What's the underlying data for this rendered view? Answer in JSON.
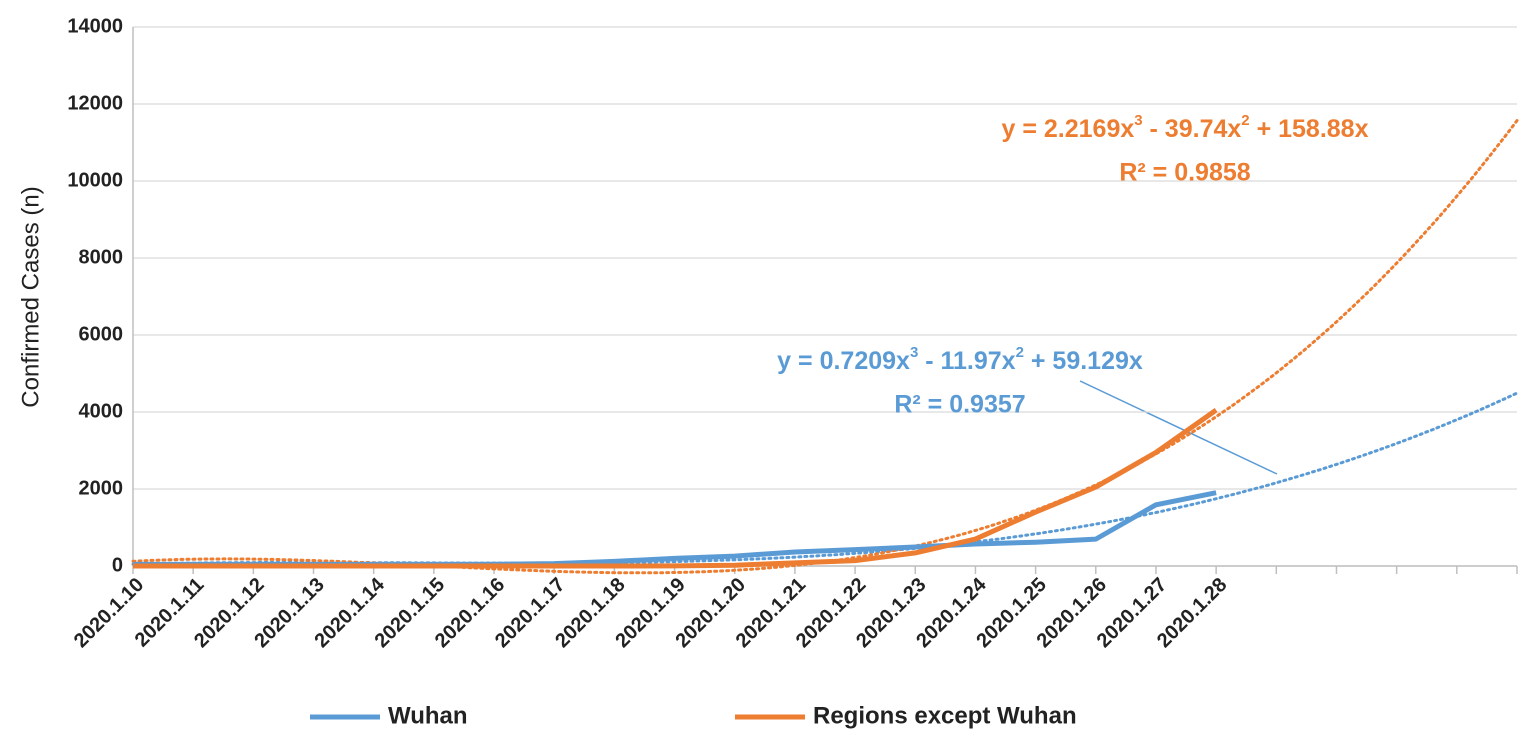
{
  "chart_data": {
    "type": "line",
    "y_label": "Confirmed Cases (n)",
    "categories": [
      "2020.1.10",
      "2020.1.11",
      "2020.1.12",
      "2020.1.13",
      "2020.1.14",
      "2020.1.15",
      "2020.1.16",
      "2020.1.17",
      "2020.1.18",
      "2020.1.19",
      "2020.1.20",
      "2020.1.21",
      "2020.1.22",
      "2020.1.23",
      "2020.1.24",
      "2020.1.25",
      "2020.1.26",
      "2020.1.27",
      "2020.1.28",
      null,
      null,
      null,
      null,
      null
    ],
    "series": [
      {
        "name": "Wuhan",
        "color": "#5b9bd5",
        "values": [
          41,
          41,
          41,
          41,
          41,
          41,
          45,
          62,
          121,
          198,
          258,
          363,
          425,
          495,
          572,
          618,
          698,
          1590,
          1905,
          null,
          null,
          null,
          null,
          null
        ],
        "trendline": {
          "type": "poly3",
          "coefficients": [
            0.7209,
            -11.97,
            59.129,
            0
          ],
          "equation": [
            "y = 0.7209x",
            "3",
            " - 11.97x",
            "2",
            " + 59.129x"
          ],
          "r2": "R² = 0.9357"
        }
      },
      {
        "name": "Regions except Wuhan",
        "color": "#ed7d31",
        "values": [
          0,
          0,
          0,
          0,
          0,
          0,
          0,
          0,
          0,
          4,
          20,
          80,
          140,
          340,
          700,
          1400,
          2050,
          2950,
          4050,
          null,
          null,
          null,
          null,
          null
        ],
        "trendline": {
          "type": "poly3",
          "coefficients": [
            2.2169,
            -39.74,
            158.88,
            0
          ],
          "equation": [
            "y = 2.2169x",
            "3",
            " - 39.74x",
            "2",
            " + 158.88x"
          ],
          "r2": "R² = 0.9858"
        }
      }
    ],
    "ylim": [
      0,
      14000
    ],
    "yticks": [
      0,
      2000,
      4000,
      6000,
      8000,
      10000,
      12000,
      14000
    ],
    "grid": true,
    "legend": "bottom"
  }
}
